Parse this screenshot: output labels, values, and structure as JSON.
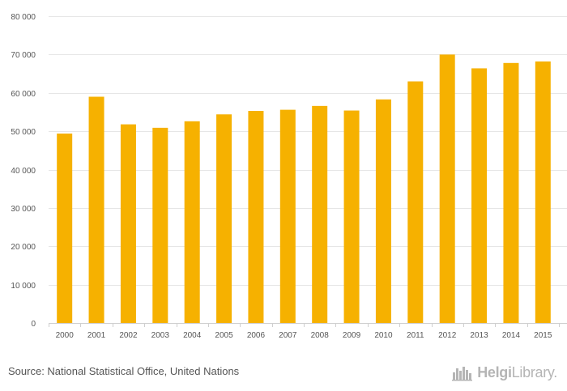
{
  "chart_data": {
    "type": "bar",
    "title": "",
    "xlabel": "",
    "ylabel": "",
    "categories": [
      "2000",
      "2001",
      "2002",
      "2003",
      "2004",
      "2005",
      "2006",
      "2007",
      "2008",
      "2009",
      "2010",
      "2011",
      "2012",
      "2013",
      "2014",
      "2015"
    ],
    "values": [
      49400,
      59000,
      51800,
      50900,
      52600,
      54400,
      55300,
      55600,
      56600,
      55400,
      58300,
      63000,
      70000,
      66400,
      67800,
      68200
    ],
    "ylim": [
      0,
      80000
    ],
    "yticks": [
      0,
      10000,
      20000,
      30000,
      40000,
      50000,
      60000,
      70000,
      80000
    ],
    "ytick_labels": [
      "0",
      "10 000",
      "20 000",
      "30 000",
      "40 000",
      "50 000",
      "60 000",
      "70 000",
      "80 000"
    ],
    "grid": true,
    "legend": "none",
    "colors": {
      "bar": "#f6b100",
      "grid": "#e6e6e6",
      "axis": "#cfcfcf",
      "text": "#555555"
    }
  },
  "footer": {
    "source": "Source: National Statistical Office, United Nations",
    "brand_bold": "Helgi",
    "brand_regular": "Library",
    "brand_suffix": ".",
    "brand_icon": "helgi-library-logo-icon"
  }
}
